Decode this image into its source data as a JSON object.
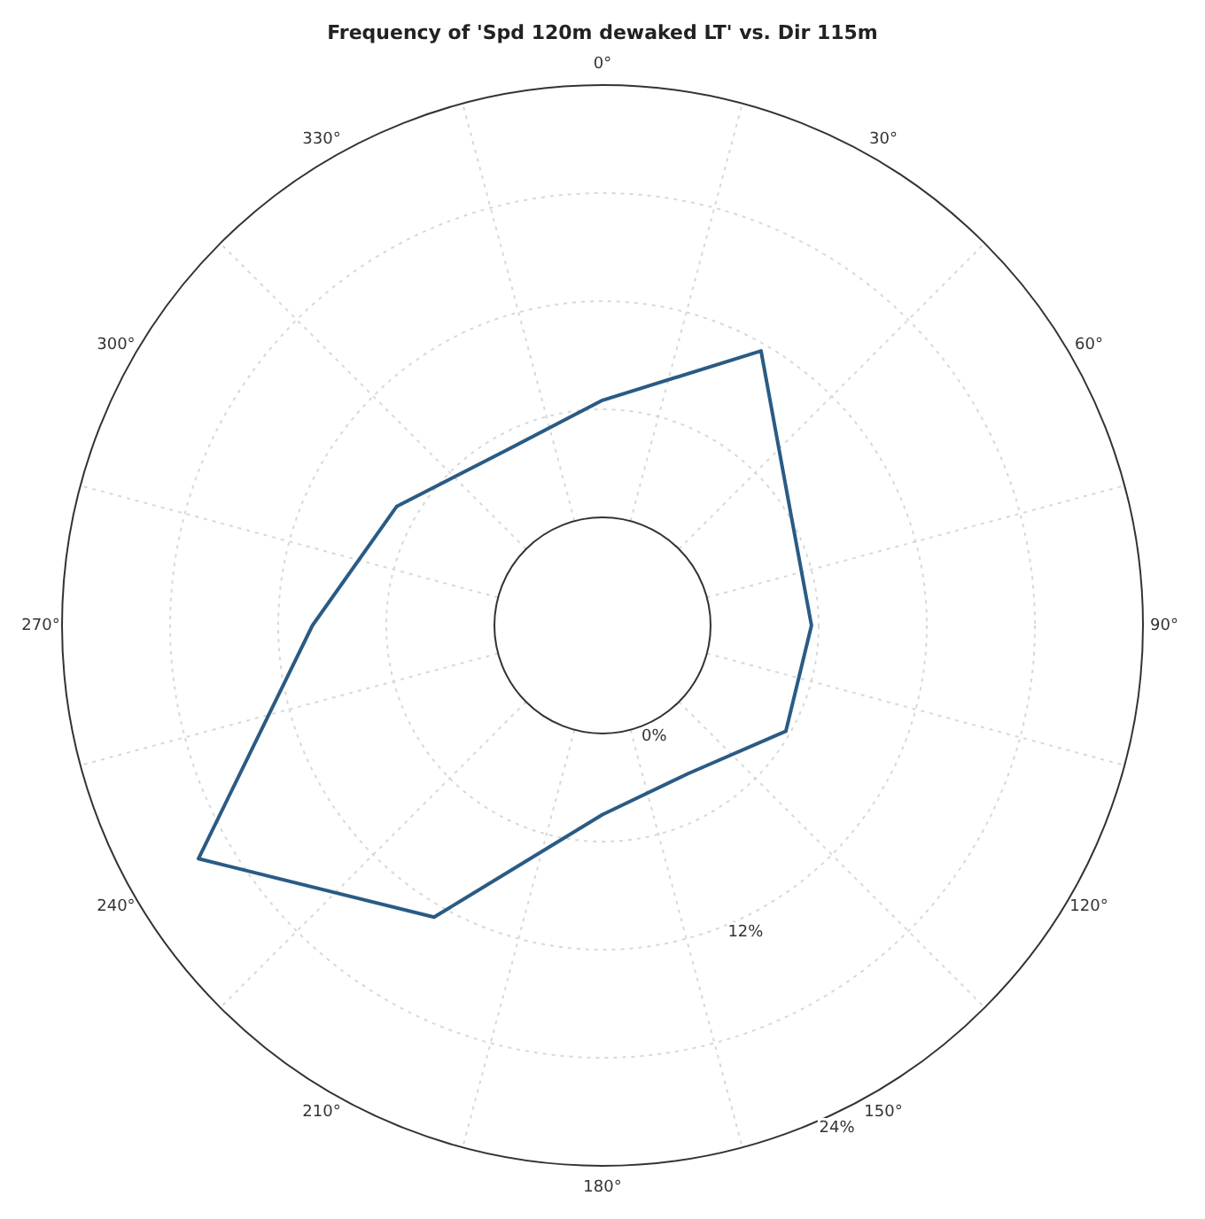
{
  "chart_data": {
    "type": "radar",
    "title": "Frequency of 'Spd 120m dewaked LT' vs. Dir 115m",
    "categories": [
      "0°",
      "30°",
      "60°",
      "90°",
      "120°",
      "150°",
      "180°",
      "210°",
      "240°",
      "270°",
      "300°",
      "330°"
    ],
    "series": [
      {
        "color": "#2a5b84",
        "values": [
          6.5,
          11.6,
          6.1,
          5.6,
          5.75,
          3.5,
          4.5,
          12.7,
          19.9,
          10.1,
          7.2,
          5.1
        ]
      }
    ],
    "ylim": [
      -6,
      24
    ],
    "yticks": [
      {
        "value": 0,
        "label": "0%"
      },
      {
        "value": 12,
        "label": "12%"
      },
      {
        "value": 24,
        "label": "24%"
      }
    ],
    "grid": true,
    "marker": "none",
    "line_style": "solid"
  }
}
